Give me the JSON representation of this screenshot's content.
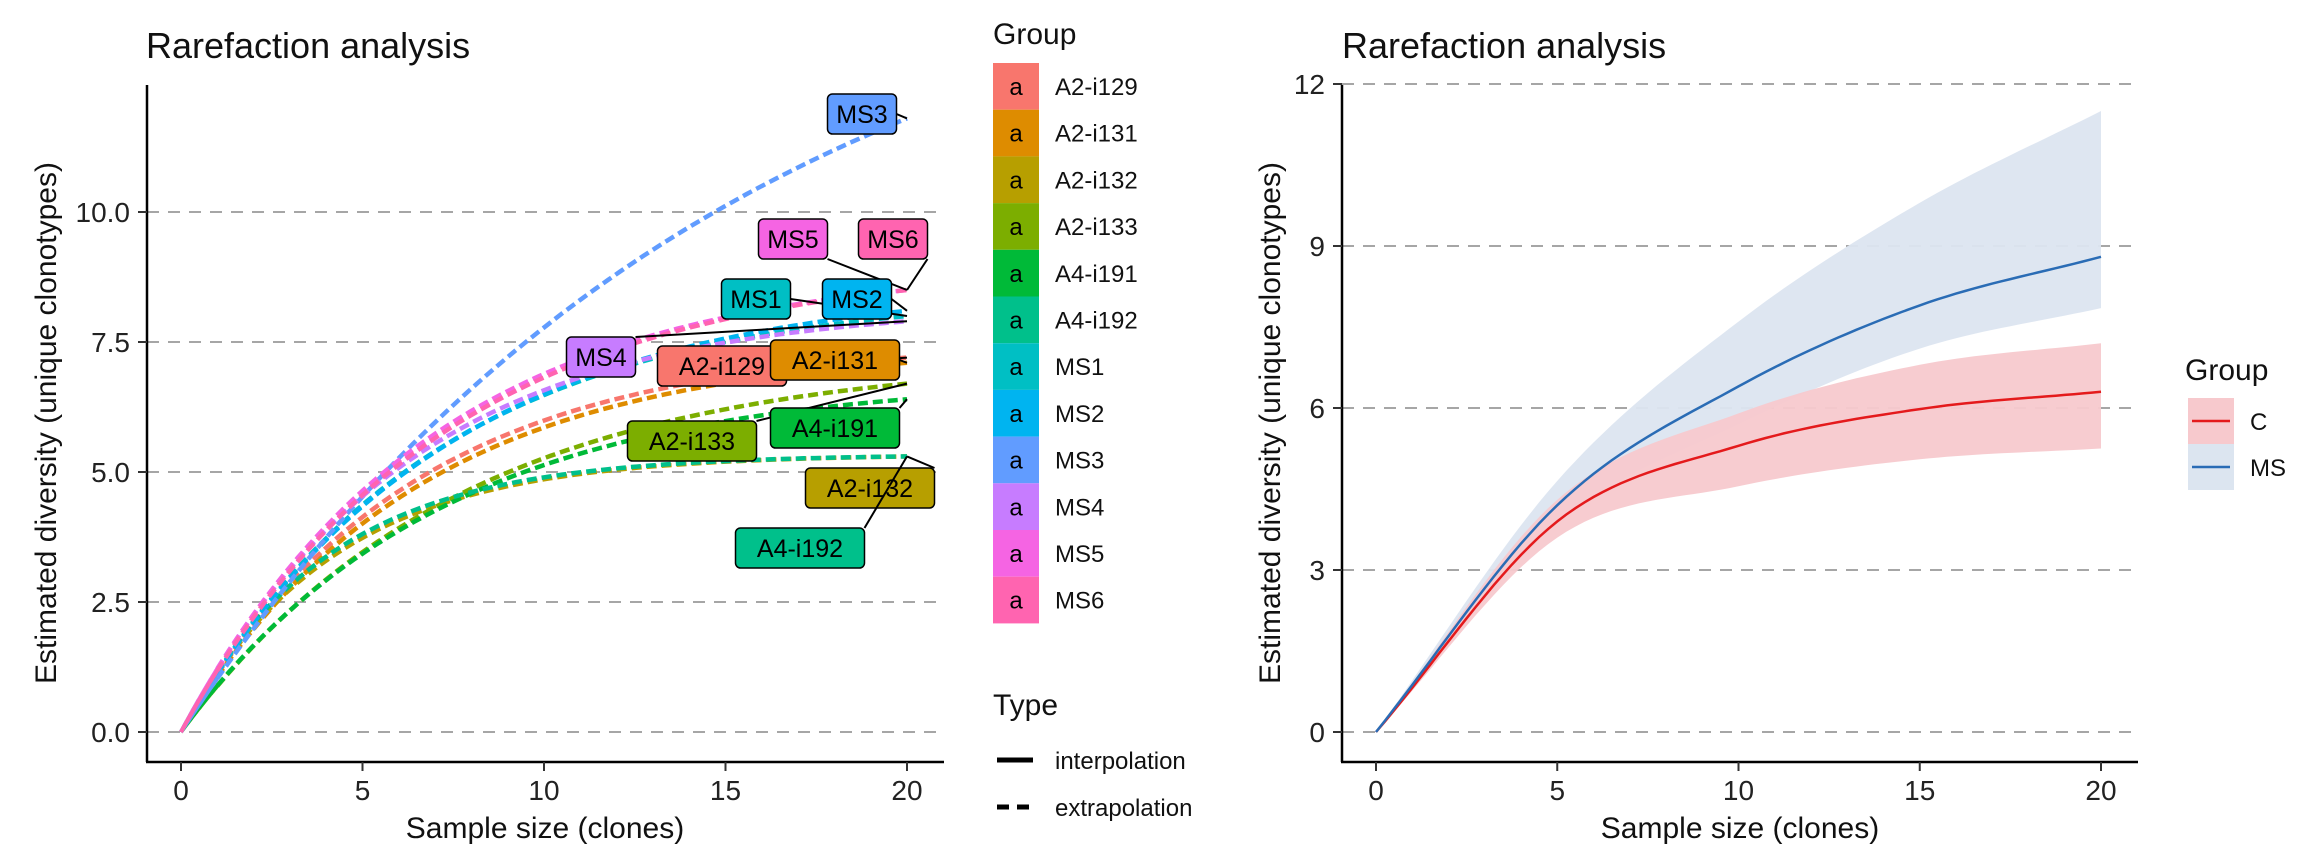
{
  "chart_data": [
    {
      "type": "line",
      "title": "Rarefaction analysis",
      "xlabel": "Sample size (clones)",
      "ylabel": "Estimated diversity (unique clonotypes)",
      "xlim": [
        0,
        20
      ],
      "ylim": [
        0,
        12.5
      ],
      "x_ticks": [
        0,
        5,
        10,
        15,
        20
      ],
      "y_ticks": [
        0.0,
        2.5,
        5.0,
        7.5,
        10.0
      ],
      "y_tick_labels": [
        "0.0",
        "2.5",
        "5.0",
        "7.5",
        "10.0"
      ],
      "grid": "horizontal dashed",
      "legend_group_title": "Group",
      "legend_type_title": "Type",
      "line_types": [
        "interpolation",
        "extrapolation"
      ],
      "key_glyph": "a",
      "series": [
        {
          "name": "A2-i129",
          "color": "#F8766D",
          "asymptote": 7.4,
          "k": 0.16,
          "end": 7.2
        },
        {
          "name": "A2-i131",
          "color": "#DE8C00",
          "asymptote": 7.4,
          "k": 0.155,
          "end": 7.1
        },
        {
          "name": "A2-i132",
          "color": "#B79F00",
          "asymptote": 5.4,
          "k": 0.24,
          "end": 5.3
        },
        {
          "name": "A2-i133",
          "color": "#7CAE00",
          "asymptote": 7.2,
          "k": 0.13,
          "end": 6.7
        },
        {
          "name": "A4-i191",
          "color": "#00BA38",
          "asymptote": 6.8,
          "k": 0.14,
          "end": 6.4
        },
        {
          "name": "A4-i192",
          "color": "#00C08B",
          "asymptote": 5.3,
          "k": 0.25,
          "end": 5.3
        },
        {
          "name": "MS1",
          "color": "#00BFC4",
          "asymptote": 8.4,
          "k": 0.145,
          "end": 8.0
        },
        {
          "name": "MS2",
          "color": "#00B4F0",
          "asymptote": 8.5,
          "k": 0.14,
          "end": 8.1
        },
        {
          "name": "MS3",
          "color": "#619CFF",
          "asymptote": 16.0,
          "k": 0.066,
          "end": 11.8
        },
        {
          "name": "MS4",
          "color": "#C77CFF",
          "asymptote": 8.2,
          "k": 0.16,
          "end": 7.9
        },
        {
          "name": "MS5",
          "color": "#F564E3",
          "asymptote": 8.9,
          "k": 0.145,
          "end": 8.5
        },
        {
          "name": "MS6",
          "color": "#FF64B0",
          "asymptote": 8.9,
          "k": 0.14,
          "end": 8.5
        }
      ]
    },
    {
      "type": "area",
      "title": "Rarefaction analysis",
      "xlabel": "Sample size (clones)",
      "ylabel": "Estimated diversity (unique clonotypes)",
      "xlim": [
        0,
        20
      ],
      "ylim": [
        0,
        12
      ],
      "x_ticks": [
        0,
        5,
        10,
        15,
        20
      ],
      "y_ticks": [
        0,
        3,
        6,
        9,
        12
      ],
      "grid": "horizontal dashed",
      "legend_title": "Group",
      "series": [
        {
          "name": "C",
          "color": "#E41A1C",
          "fill": "#F7C9CD",
          "x": [
            0,
            5,
            10,
            15,
            20
          ],
          "y": [
            0,
            3.9,
            5.3,
            5.98,
            6.3
          ],
          "lower": [
            0,
            3.6,
            4.55,
            5.05,
            5.25
          ],
          "upper": [
            0,
            4.3,
            5.9,
            6.8,
            7.2
          ]
        },
        {
          "name": "MS",
          "color": "#2A6CB5",
          "fill": "#DCE5F0",
          "x": [
            0,
            5,
            10,
            15,
            20
          ],
          "y": [
            0,
            4.2,
            6.4,
            7.9,
            8.8
          ],
          "lower": [
            0,
            3.85,
            5.7,
            7.1,
            7.85
          ],
          "upper": [
            0,
            4.65,
            7.6,
            9.8,
            11.5
          ]
        }
      ]
    }
  ]
}
